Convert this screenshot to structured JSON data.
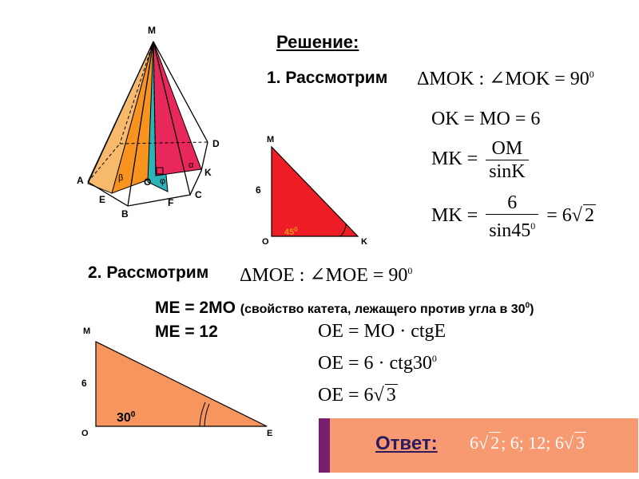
{
  "title": "Решение:",
  "step1": {
    "label": "1. Рассмотрим",
    "triangle": "ΔMOK : ∠MOK = 90",
    "sup": "0"
  },
  "formulas1": {
    "line1": "OK = MO = 6",
    "mk_left": "MK =",
    "mk_num": "OM",
    "mk_den": "sinK",
    "mk2_left": "MK =",
    "mk2_num": "6",
    "mk2_den": "sin45",
    "mk2_den_sup": "0",
    "mk2_right": "= 6",
    "mk2_rad": "2"
  },
  "step2": {
    "label": "2. Рассмотрим",
    "triangle": "ΔMOE : ∠MOE = 90",
    "sup": "0"
  },
  "me_lines": {
    "line1_main": "ME = 2MO",
    "line1_note": "(свойство катета, лежащего против угла в 30",
    "line1_note_sup": "0",
    "line1_note_end": ")",
    "line2": "ME = 12"
  },
  "formulas2": {
    "line1": "OE = MO · ctgE",
    "line2": "OE = 6 · ctg30",
    "line2_sup": "0",
    "line3_left": "OE = 6",
    "line3_rad": "3"
  },
  "answer": {
    "label": "Ответ:",
    "v1_coef": "6",
    "v1_rad": "2",
    "v2": "; 6; 12; ",
    "v3_coef": "6",
    "v3_rad": "3"
  },
  "pyramid_labels": {
    "M": "M",
    "A": "A",
    "B": "B",
    "C": "C",
    "D": "D",
    "E": "E",
    "F": "F",
    "K": "K",
    "O": "O",
    "alpha": "α",
    "beta": "β",
    "phi": "φ"
  },
  "triangle_mok": {
    "M": "M",
    "O": "O",
    "K": "K",
    "side": "6",
    "angle": "45",
    "angle_sup": "0"
  },
  "triangle_moe": {
    "M": "M",
    "O": "O",
    "E": "E",
    "side": "6",
    "angle": "30",
    "angle_sup": "0"
  },
  "colors": {
    "red": "#ee1c24",
    "orange": "#f7931e",
    "teal": "#2bb3b7",
    "crimson": "#e8285a",
    "triangle_moe_fill": "#f7955f",
    "answer_bg": "#f79a72",
    "answer_bar": "#7a1e6f"
  }
}
